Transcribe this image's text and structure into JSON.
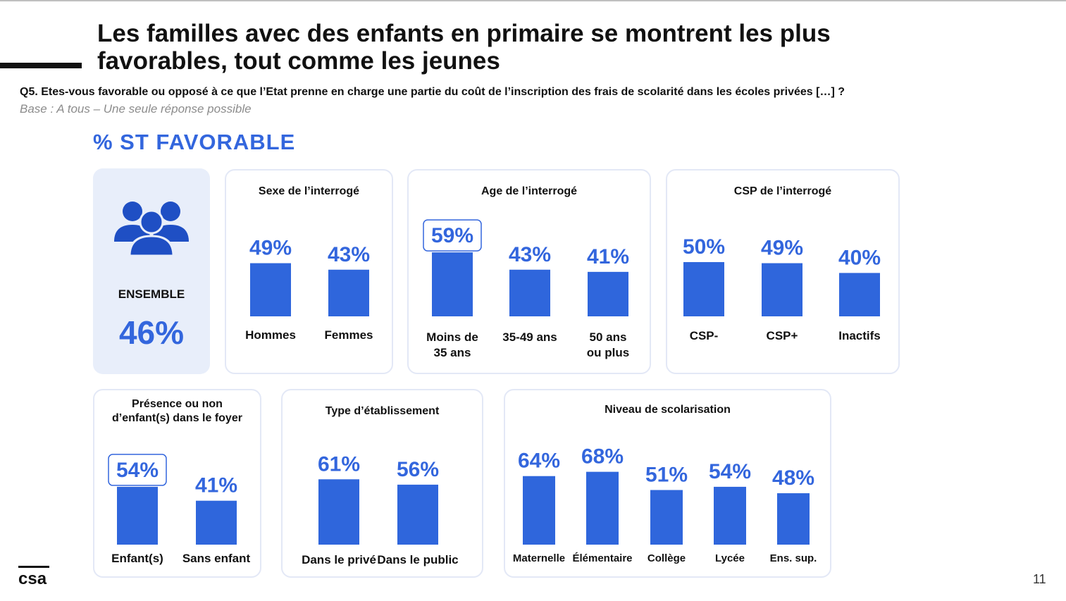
{
  "title": "Les familles avec des enfants en primaire se montrent les plus favorables, tout comme les jeunes",
  "question": "Q5. Etes-vous favorable ou opposé à ce que l’Etat prenne en charge une partie du coût de l’inscription des frais de scolarité dans les écoles privées […] ?",
  "base": "Base : A tous – Une seule réponse possible",
  "section_label": "% ST FAVORABLE",
  "ensemble": {
    "label": "ENSEMBLE",
    "value": "46%",
    "icon": "people-group-icon"
  },
  "colors": {
    "accent": "#3366dd",
    "bar": "#2f66dc",
    "panel_border": "#e3e8f6",
    "ensemble_bg": "#e8eefa"
  },
  "page_number": "11",
  "logo_text": "csa",
  "chart_data": [
    {
      "type": "bar",
      "title": "Sexe de l’interrogé",
      "categories": [
        "Hommes",
        "Femmes"
      ],
      "values": [
        49,
        43
      ],
      "unit": "%",
      "highlight": []
    },
    {
      "type": "bar",
      "title": "Age de l’interrogé",
      "categories": [
        "Moins de 35 ans",
        "35-49 ans",
        "50 ans ou plus"
      ],
      "values": [
        59,
        43,
        41
      ],
      "unit": "%",
      "highlight": [
        0
      ]
    },
    {
      "type": "bar",
      "title": "CSP de l’interrogé",
      "categories": [
        "CSP-",
        "CSP+",
        "Inactifs"
      ],
      "values": [
        50,
        49,
        40
      ],
      "unit": "%",
      "highlight": []
    },
    {
      "type": "bar",
      "title": "Présence ou non d’enfant(s) dans le foyer",
      "categories": [
        "Enfant(s)",
        "Sans enfant"
      ],
      "values": [
        54,
        41
      ],
      "unit": "%",
      "highlight": [
        0
      ]
    },
    {
      "type": "bar",
      "title": "Type d’établissement",
      "categories": [
        "Dans le privé",
        "Dans le public"
      ],
      "values": [
        61,
        56
      ],
      "unit": "%",
      "highlight": []
    },
    {
      "type": "bar",
      "title": "Niveau de scolarisation",
      "categories": [
        "Maternelle",
        "Élémentaire",
        "Collège",
        "Lycée",
        "Ens. sup."
      ],
      "values": [
        64,
        68,
        51,
        54,
        48
      ],
      "unit": "%",
      "highlight": []
    }
  ]
}
